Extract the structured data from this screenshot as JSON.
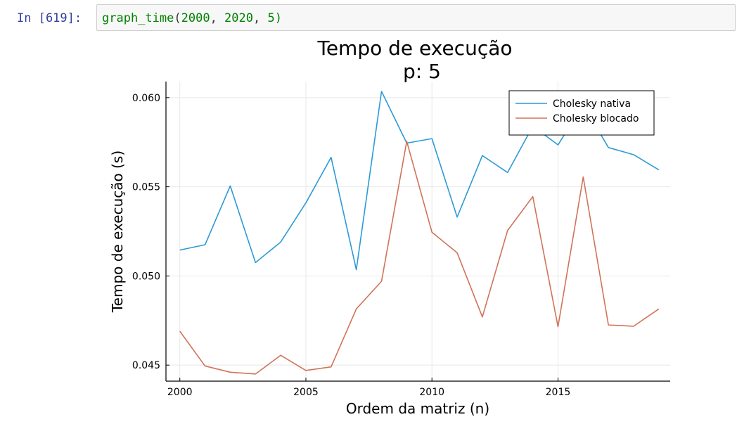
{
  "cell": {
    "prompt": "In [619]:",
    "code": {
      "fn": "graph_time",
      "open": "(",
      "arg1": "2000",
      "sep1": ", ",
      "arg2": "2020",
      "sep2": ", ",
      "arg3": "5",
      "close": ")"
    }
  },
  "colors": {
    "series1": "#2c9ad6",
    "series2": "#d0735a"
  },
  "chart_data": {
    "type": "line",
    "title": "Tempo de execução",
    "subtitle": "p: 5",
    "xlabel": "Ordem da matriz (n)",
    "ylabel": "Tempo de execução (s)",
    "xlim": [
      1999.45,
      2019.45
    ],
    "ylim": [
      0.0441,
      0.0609
    ],
    "xticks": [
      2000,
      2005,
      2010,
      2015
    ],
    "xtick_labels": [
      "2000",
      "2005",
      "2010",
      "2015"
    ],
    "yticks": [
      0.045,
      0.05,
      0.055,
      0.06
    ],
    "ytick_labels": [
      "0.045",
      "0.050",
      "0.055",
      "0.060"
    ],
    "grid": true,
    "legend_position": "top-right",
    "x": [
      2000,
      2001,
      2002,
      2003,
      2004,
      2005,
      2006,
      2007,
      2008,
      2009,
      2010,
      2011,
      2012,
      2013,
      2014,
      2015,
      2016,
      2017,
      2018,
      2019
    ],
    "series": [
      {
        "name": "Cholesky nativa",
        "values": [
          0.05145,
          0.05175,
          0.05505,
          0.05075,
          0.0519,
          0.0541,
          0.05665,
          0.05035,
          0.06035,
          0.05745,
          0.0577,
          0.0533,
          0.05675,
          0.0558,
          0.0584,
          0.05735,
          0.0596,
          0.0572,
          0.0568,
          0.05595
        ]
      },
      {
        "name": "Cholesky blocado",
        "values": [
          0.0469,
          0.04495,
          0.0446,
          0.0445,
          0.04555,
          0.0447,
          0.0449,
          0.04815,
          0.0497,
          0.05755,
          0.05245,
          0.0513,
          0.0477,
          0.05255,
          0.05445,
          0.04715,
          0.05555,
          0.04725,
          0.04718,
          0.04815
        ]
      }
    ]
  }
}
